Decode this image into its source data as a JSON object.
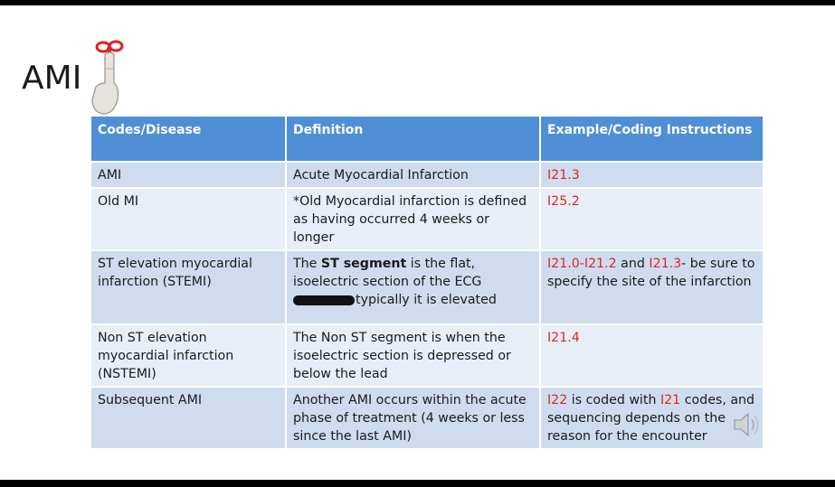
{
  "slide": {
    "title": "AMI"
  },
  "table": {
    "headers": [
      "Codes/Disease",
      "Definition",
      "Example/Coding Instructions"
    ],
    "rows": [
      {
        "disease": "AMI",
        "definition": "Acute Myocardial Infarction",
        "code": "I21.3"
      },
      {
        "disease": "Old MI",
        "definition": "*Old Myocardial infarction is defined as having occurred 4 weeks or longer",
        "code": "I25.2"
      },
      {
        "disease": "ST elevation myocardial infarction (STEMI)",
        "definition_pre": "The ",
        "definition_bold": "ST segment",
        "definition_mid": " is the flat, isoelectric section of the ECG ",
        "definition_post": "typically it is elevated",
        "code_a": "I21.0-I21.2",
        "code_and": " and ",
        "code_b": "I21.3",
        "code_rest": "-  be sure to specify the site of the infarction"
      },
      {
        "disease": "Non ST elevation myocardial infarction (NSTEMI)",
        "definition": "The Non ST segment is when the isoelectric section is depressed or below the lead",
        "code": "I21.4"
      },
      {
        "disease": "Subsequent AMI",
        "definition": "Another AMI occurs within the acute phase of treatment (4 weeks or less since the last AMI)",
        "code_a": "I22",
        "code_mid": " is coded with ",
        "code_b": "I21",
        "code_rest": " codes, and sequencing depends on the reason for the encounter"
      }
    ]
  },
  "colors": {
    "header": "#4f8fd6",
    "row_odd": "#cfdcef",
    "row_even": "#e8eef8",
    "code_red": "#e0261c"
  },
  "icons": [
    "pointing-finger-icon",
    "speaker-icon"
  ]
}
